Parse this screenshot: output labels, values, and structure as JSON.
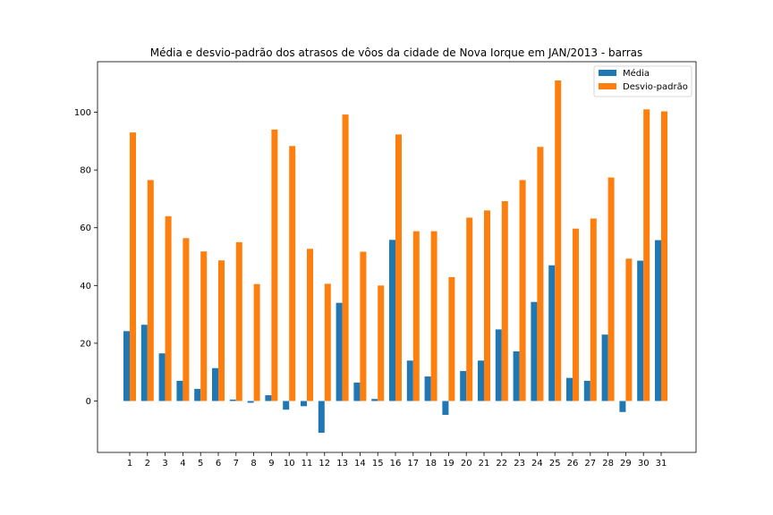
{
  "chart_data": {
    "type": "bar",
    "title": "Média e desvio-padrão dos atrasos de vôos da cidade de Nova Iorque em JAN/2013 - barras",
    "xlabel": "",
    "ylabel": "",
    "categories": [
      "1",
      "2",
      "3",
      "4",
      "5",
      "6",
      "7",
      "8",
      "9",
      "10",
      "11",
      "12",
      "13",
      "14",
      "15",
      "16",
      "17",
      "18",
      "19",
      "20",
      "21",
      "22",
      "23",
      "24",
      "25",
      "26",
      "27",
      "28",
      "29",
      "30",
      "31"
    ],
    "series": [
      {
        "name": "Média",
        "color": "#1f77b4",
        "values": [
          24.2,
          26.4,
          16.5,
          7.0,
          4.2,
          11.4,
          0.5,
          -0.6,
          2.0,
          -3.0,
          -1.8,
          -11.0,
          34.0,
          6.4,
          0.7,
          55.8,
          14.0,
          8.5,
          -4.8,
          10.4,
          14.0,
          24.8,
          17.2,
          34.3,
          47.0,
          8.0,
          7.0,
          23.0,
          -3.8,
          48.6,
          55.7
        ]
      },
      {
        "name": "Desvio-padrão",
        "color": "#ff7f0e",
        "values": [
          93.0,
          76.5,
          64.0,
          56.4,
          51.8,
          48.7,
          55.0,
          40.5,
          94.0,
          88.3,
          52.7,
          40.6,
          99.2,
          51.7,
          40.0,
          92.3,
          58.8,
          58.8,
          42.9,
          63.5,
          66.0,
          69.2,
          76.5,
          88.0,
          111.0,
          59.7,
          63.2,
          77.4,
          49.3,
          101.0,
          100.3
        ]
      }
    ],
    "ylim": [
      -17.8,
      117.5
    ],
    "yticks": [
      0,
      20,
      40,
      60,
      80,
      100
    ],
    "legend": "top-right",
    "grid": false
  }
}
